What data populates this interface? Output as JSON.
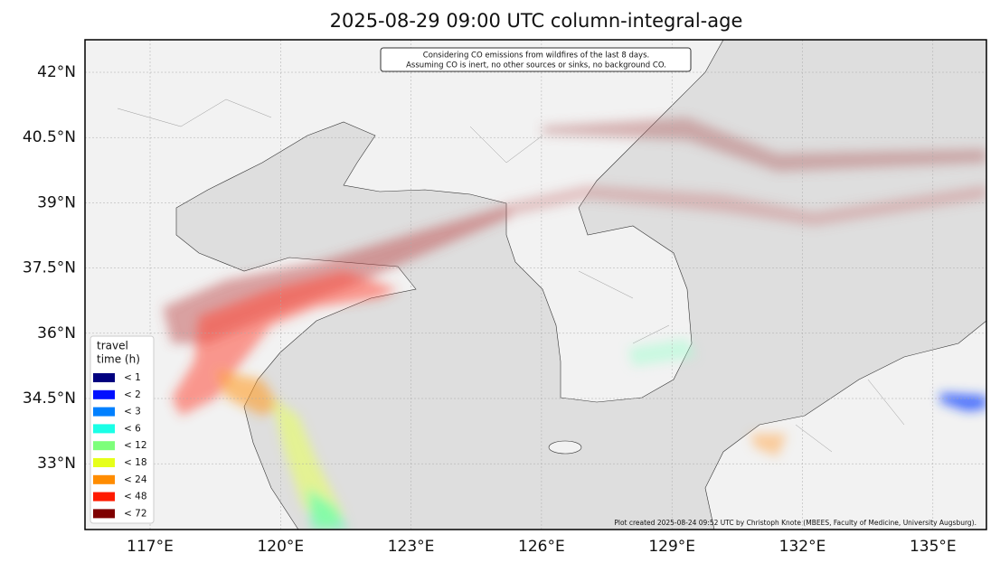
{
  "title": "2025-08-29 09:00 UTC column-integral-age",
  "note": [
    "Considering CO emissions from wildfires of the last 8 days.",
    "Assuming CO is inert, no other sources or sinks, no background CO."
  ],
  "lat_labels": [
    "42°N",
    "40.5°N",
    "39°N",
    "37.5°N",
    "36°N",
    "34.5°N",
    "33°N"
  ],
  "lon_labels": [
    "117°E",
    "120°E",
    "123°E",
    "126°E",
    "129°E",
    "132°E",
    "135°E"
  ],
  "legend": {
    "title": [
      "travel",
      "time (h)"
    ],
    "items": [
      {
        "label": "<  1",
        "color": "#00007f"
      },
      {
        "label": "<  2",
        "color": "#0010ff"
      },
      {
        "label": "<  3",
        "color": "#0080ff"
      },
      {
        "label": "<  6",
        "color": "#1affe6"
      },
      {
        "label": "< 12",
        "color": "#7dff7a"
      },
      {
        "label": "< 18",
        "color": "#e6ff1a"
      },
      {
        "label": "< 24",
        "color": "#ff8c00"
      },
      {
        "label": "< 48",
        "color": "#ff1a00"
      },
      {
        "label": "< 72",
        "color": "#7f0000"
      }
    ]
  },
  "credit": "Plot created 2025-08-24 09:52 UTC by Christoph Knote (MBEES, Faculty of Medicine, University Augsburg)."
}
